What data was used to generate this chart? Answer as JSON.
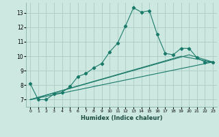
{
  "xlabel": "Humidex (Indice chaleur)",
  "ylabel": "",
  "background_color": "#cce8e0",
  "grid_color": "#aaccc4",
  "line_color": "#1a7a6a",
  "xlim": [
    -0.5,
    23.5
  ],
  "ylim": [
    6.5,
    13.7
  ],
  "yticks": [
    7,
    8,
    9,
    10,
    11,
    12,
    13
  ],
  "xticks": [
    0,
    1,
    2,
    3,
    4,
    5,
    6,
    7,
    8,
    9,
    10,
    11,
    12,
    13,
    14,
    15,
    16,
    17,
    18,
    19,
    20,
    21,
    22,
    23
  ],
  "series1": {
    "x": [
      0,
      1,
      2,
      3,
      4,
      5,
      6,
      7,
      8,
      9,
      10,
      11,
      12,
      13,
      14,
      15,
      16,
      17,
      18,
      19,
      20,
      21,
      22,
      23
    ],
    "y": [
      8.1,
      7.0,
      7.0,
      7.4,
      7.5,
      7.9,
      8.6,
      8.8,
      9.2,
      9.5,
      10.3,
      10.9,
      12.1,
      13.35,
      13.05,
      13.15,
      11.5,
      10.2,
      10.1,
      10.55,
      10.55,
      9.9,
      9.6,
      9.6
    ]
  },
  "series2": {
    "x": [
      0,
      23
    ],
    "y": [
      7.0,
      9.6
    ]
  },
  "series3": {
    "x": [
      0,
      19,
      23
    ],
    "y": [
      7.0,
      10.0,
      9.6
    ]
  },
  "series4": {
    "x": [
      0,
      20,
      23
    ],
    "y": [
      7.0,
      10.1,
      9.6
    ]
  }
}
